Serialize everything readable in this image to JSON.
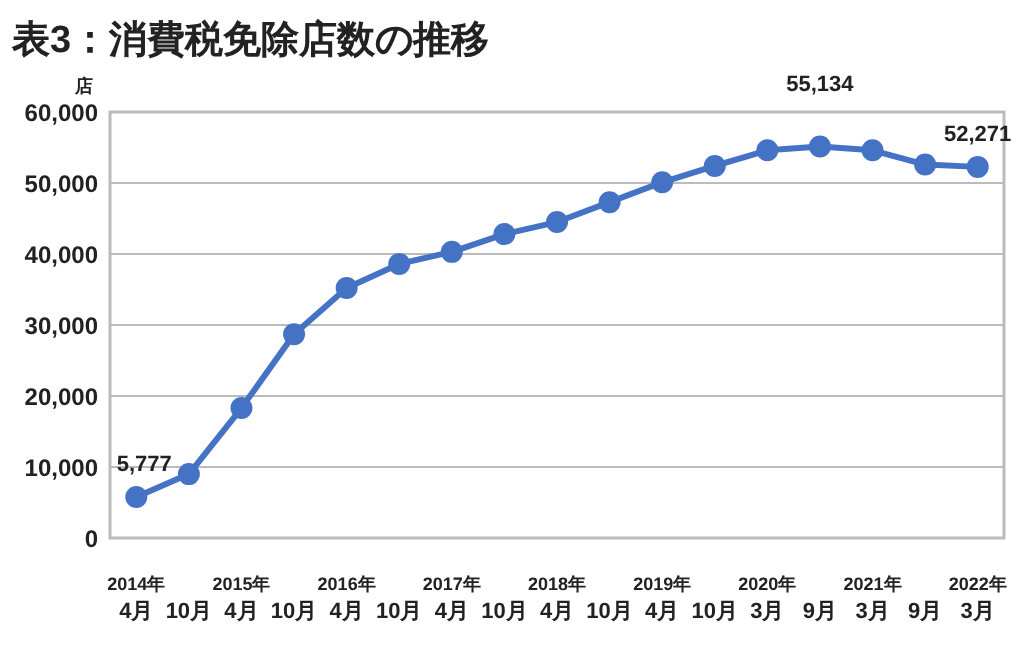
{
  "chart_data": {
    "type": "line",
    "title": "表3：消費税免除店数の推移",
    "ylabel": "店",
    "categories": [
      "2014年\n4月",
      "10月",
      "2015年\n4月",
      "10月",
      "2016年\n4月",
      "10月",
      "2017年\n4月",
      "10月",
      "2018年\n4月",
      "10月",
      "2019年\n4月",
      "10月",
      "2020年\n3月",
      "9月",
      "2021年\n3月",
      "9月",
      "2022年\n3月"
    ],
    "series": [
      {
        "color": "#4472c4",
        "values": [
          5777,
          9000,
          18300,
          28700,
          35200,
          38600,
          40300,
          42800,
          44500,
          47300,
          50100,
          52400,
          54600,
          55134,
          54600,
          52600,
          52271
        ],
        "value_labels": [
          "5,777",
          null,
          null,
          null,
          null,
          null,
          null,
          null,
          null,
          null,
          null,
          null,
          null,
          "55,134",
          null,
          null,
          "52,271"
        ]
      }
    ],
    "ylim": [
      0,
      60000
    ],
    "yticks": [
      {
        "value": 0,
        "label": "0"
      },
      {
        "value": 10000,
        "label": "10,000"
      },
      {
        "value": 20000,
        "label": "20,000"
      },
      {
        "value": 30000,
        "label": "30,000"
      },
      {
        "value": 40000,
        "label": "40,000"
      },
      {
        "value": 50000,
        "label": "50,000"
      },
      {
        "value": 60000,
        "label": "60,000"
      }
    ],
    "grid": "y",
    "marker": "circle",
    "line_style": "solid"
  }
}
